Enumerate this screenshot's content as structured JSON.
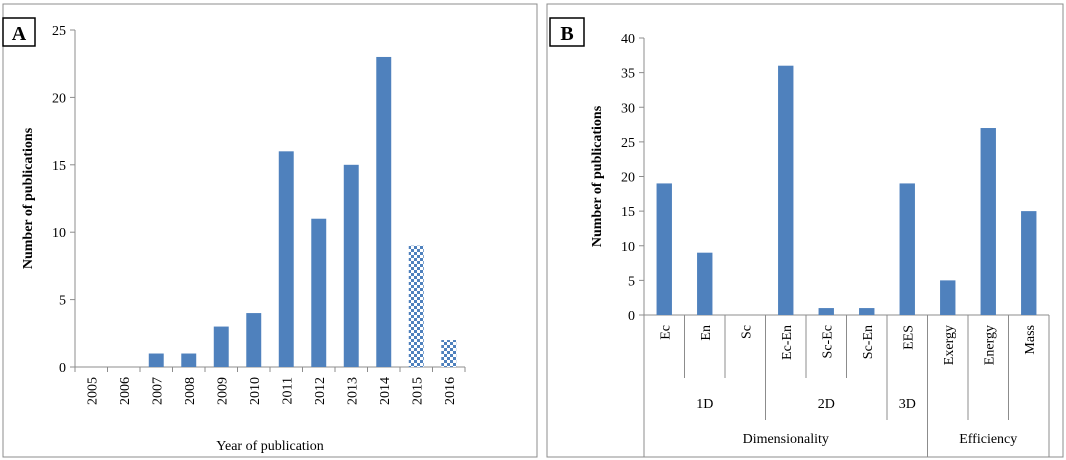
{
  "chart_data": [
    {
      "panel_label": "A",
      "type": "bar",
      "categories": [
        "2005",
        "2006",
        "2007",
        "2008",
        "2009",
        "2010",
        "2011",
        "2012",
        "2013",
        "2014",
        "2015",
        "2016"
      ],
      "values": [
        0,
        0,
        1,
        1,
        3,
        4,
        16,
        11,
        15,
        23,
        9,
        2
      ],
      "patterned": [
        false,
        false,
        false,
        false,
        false,
        false,
        false,
        false,
        false,
        false,
        true,
        true
      ],
      "xlabel": "Year of publication",
      "ylabel": "Number of publications",
      "ylim": [
        0,
        25
      ],
      "yticks": [
        "0",
        "5",
        "10",
        "15",
        "20",
        "25"
      ],
      "grid": false,
      "bar_color": "#4F81BD"
    },
    {
      "panel_label": "B",
      "type": "bar",
      "categories": [
        "Ec",
        "En",
        "Sc",
        "Ec-En",
        "Sc-Ec",
        "Sc-En",
        "EES",
        "Exergy",
        "Energy",
        "Mass"
      ],
      "values": [
        19,
        9,
        0,
        36,
        1,
        1,
        19,
        5,
        27,
        15
      ],
      "groups": [
        {
          "label": "1D",
          "count": 3
        },
        {
          "label": "2D",
          "count": 3
        },
        {
          "label": "3D",
          "count": 1
        }
      ],
      "supergroups": [
        {
          "label": "Dimensionality",
          "count": 7
        },
        {
          "label": "Efficiency",
          "count": 3
        }
      ],
      "ylabel": "Number of publications",
      "ylim": [
        0,
        40
      ],
      "yticks": [
        "0",
        "5",
        "10",
        "15",
        "20",
        "25",
        "30",
        "35",
        "40"
      ],
      "grid": false,
      "bar_color": "#4F81BD"
    }
  ]
}
